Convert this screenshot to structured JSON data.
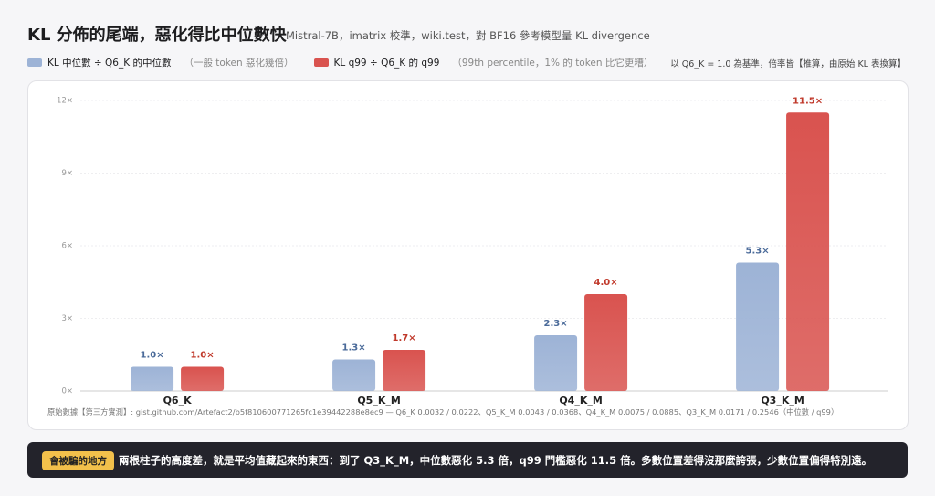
{
  "chart_data": {
    "type": "bar",
    "title": "KL 分佈的尾端，惡化得比中位數快",
    "subtitle": "Mistral-7B，imatrix 校準，wiki.test，對 BF16 參考模型量 KL divergence",
    "scale_note": "以 Q6_K = 1.0 為基準，倍率皆【推算，由原始 KL 表換算】",
    "categories": [
      "Q6_K",
      "Q5_K_M",
      "Q4_K_M",
      "Q3_K_M"
    ],
    "series": [
      {
        "name": "KL 中位數 ÷ Q6_K 的中位數",
        "note": "（一般 token 惡化幾倍）",
        "color": "#9db3d6",
        "values": [
          1.0,
          1.3,
          2.3,
          5.3
        ],
        "value_labels": [
          "1.0×",
          "1.3×",
          "2.3×",
          "5.3×"
        ],
        "label_color": "#4a6a99"
      },
      {
        "name": "KL q99 ÷ Q6_K 的 q99",
        "note": "（99th percentile，1% 的 token 比它更糟）",
        "color": "#d9534f",
        "values": [
          1.0,
          1.7,
          4.0,
          11.5
        ],
        "value_labels": [
          "1.0×",
          "1.7×",
          "4.0×",
          "11.5×"
        ],
        "label_color": "#c0392b"
      }
    ],
    "ylim": [
      0,
      12
    ],
    "yticks": [
      {
        "value": 0,
        "label": "0×"
      },
      {
        "value": 3,
        "label": "3×"
      },
      {
        "value": 6,
        "label": "6×"
      },
      {
        "value": 9,
        "label": "9×"
      },
      {
        "value": 12,
        "label": "12×"
      }
    ],
    "grid": true,
    "source": "原始數據【第三方實測】: gist.github.com/Artefact2/b5f810600771265fc1e39442288e8ec9 — Q6_K 0.0032 / 0.0222、Q5_K_M 0.0043 / 0.0368、Q4_K_M 0.0075 / 0.0885、Q3_K_M 0.0171 / 0.2546（中位數 / q99）",
    "callout": {
      "badge": "會被騙的地方",
      "text": "兩根柱子的高度差，就是平均值藏起來的東西：到了 Q3_K_M，中位數惡化 5.3 倍，q99 門檻惡化 11.5 倍。多數位置差得沒那麼誇張，少數位置偏得特別遠。"
    }
  }
}
